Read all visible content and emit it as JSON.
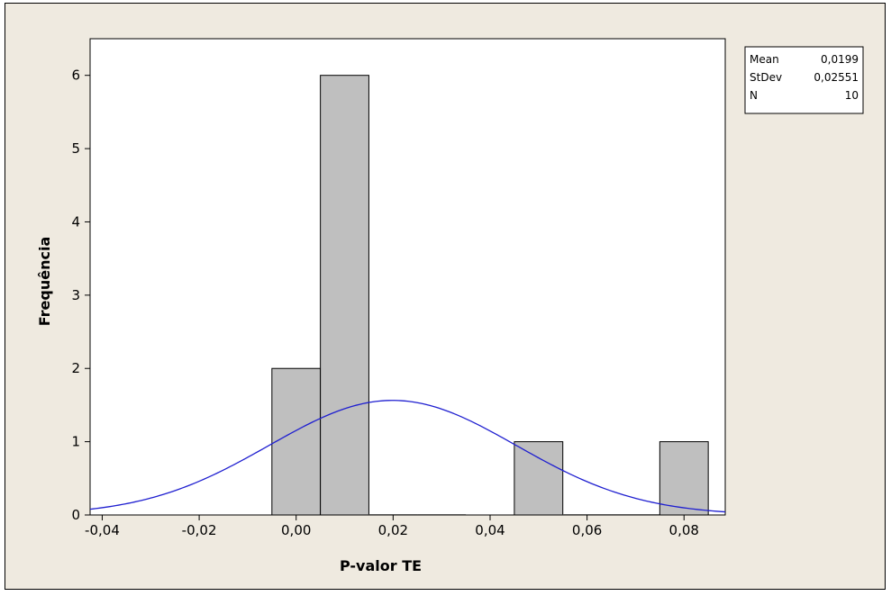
{
  "chart_data": {
    "type": "bar",
    "title": "",
    "xlabel": "P-valor TE",
    "ylabel": "Frequência",
    "bins": [
      {
        "center": 0.0,
        "width": 0.01,
        "count": 2
      },
      {
        "center": 0.01,
        "width": 0.01,
        "count": 6
      },
      {
        "center": 0.02,
        "width": 0.01,
        "count": 0
      },
      {
        "center": 0.03,
        "width": 0.01,
        "count": 0
      },
      {
        "center": 0.05,
        "width": 0.01,
        "count": 1
      },
      {
        "center": 0.06,
        "width": 0.01,
        "count": 0
      },
      {
        "center": 0.07,
        "width": 0.01,
        "count": 0
      },
      {
        "center": 0.08,
        "width": 0.01,
        "count": 1
      }
    ],
    "xlim": [
      -0.0425,
      0.0885
    ],
    "ylim": [
      0,
      6.5
    ],
    "xticks": [
      {
        "value": -0.04,
        "label": "-0,04"
      },
      {
        "value": -0.02,
        "label": "-0,02"
      },
      {
        "value": 0.0,
        "label": "0,00"
      },
      {
        "value": 0.02,
        "label": "0,02"
      },
      {
        "value": 0.04,
        "label": "0,04"
      },
      {
        "value": 0.06,
        "label": "0,06"
      },
      {
        "value": 0.08,
        "label": "0,08"
      }
    ],
    "yticks": [
      {
        "value": 0,
        "label": "0"
      },
      {
        "value": 1,
        "label": "1"
      },
      {
        "value": 2,
        "label": "2"
      },
      {
        "value": 3,
        "label": "3"
      },
      {
        "value": 4,
        "label": "4"
      },
      {
        "value": 5,
        "label": "5"
      },
      {
        "value": 6,
        "label": "6"
      }
    ],
    "normal_curve": {
      "mean": 0.0199,
      "stdev": 0.02551,
      "n": 10,
      "bin_width": 0.01
    },
    "stats": [
      {
        "label": "Mean",
        "value": "0,0199"
      },
      {
        "label": "StDev",
        "value": "0,02551"
      },
      {
        "label": "N",
        "value": "10"
      }
    ],
    "legend_position": "top-right",
    "grid": false
  },
  "colors": {
    "background": "#efeae0",
    "plot_area": "#ffffff",
    "bar_fill": "#bfbfbf",
    "bar_stroke": "#000000",
    "curve": "#1f1fd0"
  }
}
